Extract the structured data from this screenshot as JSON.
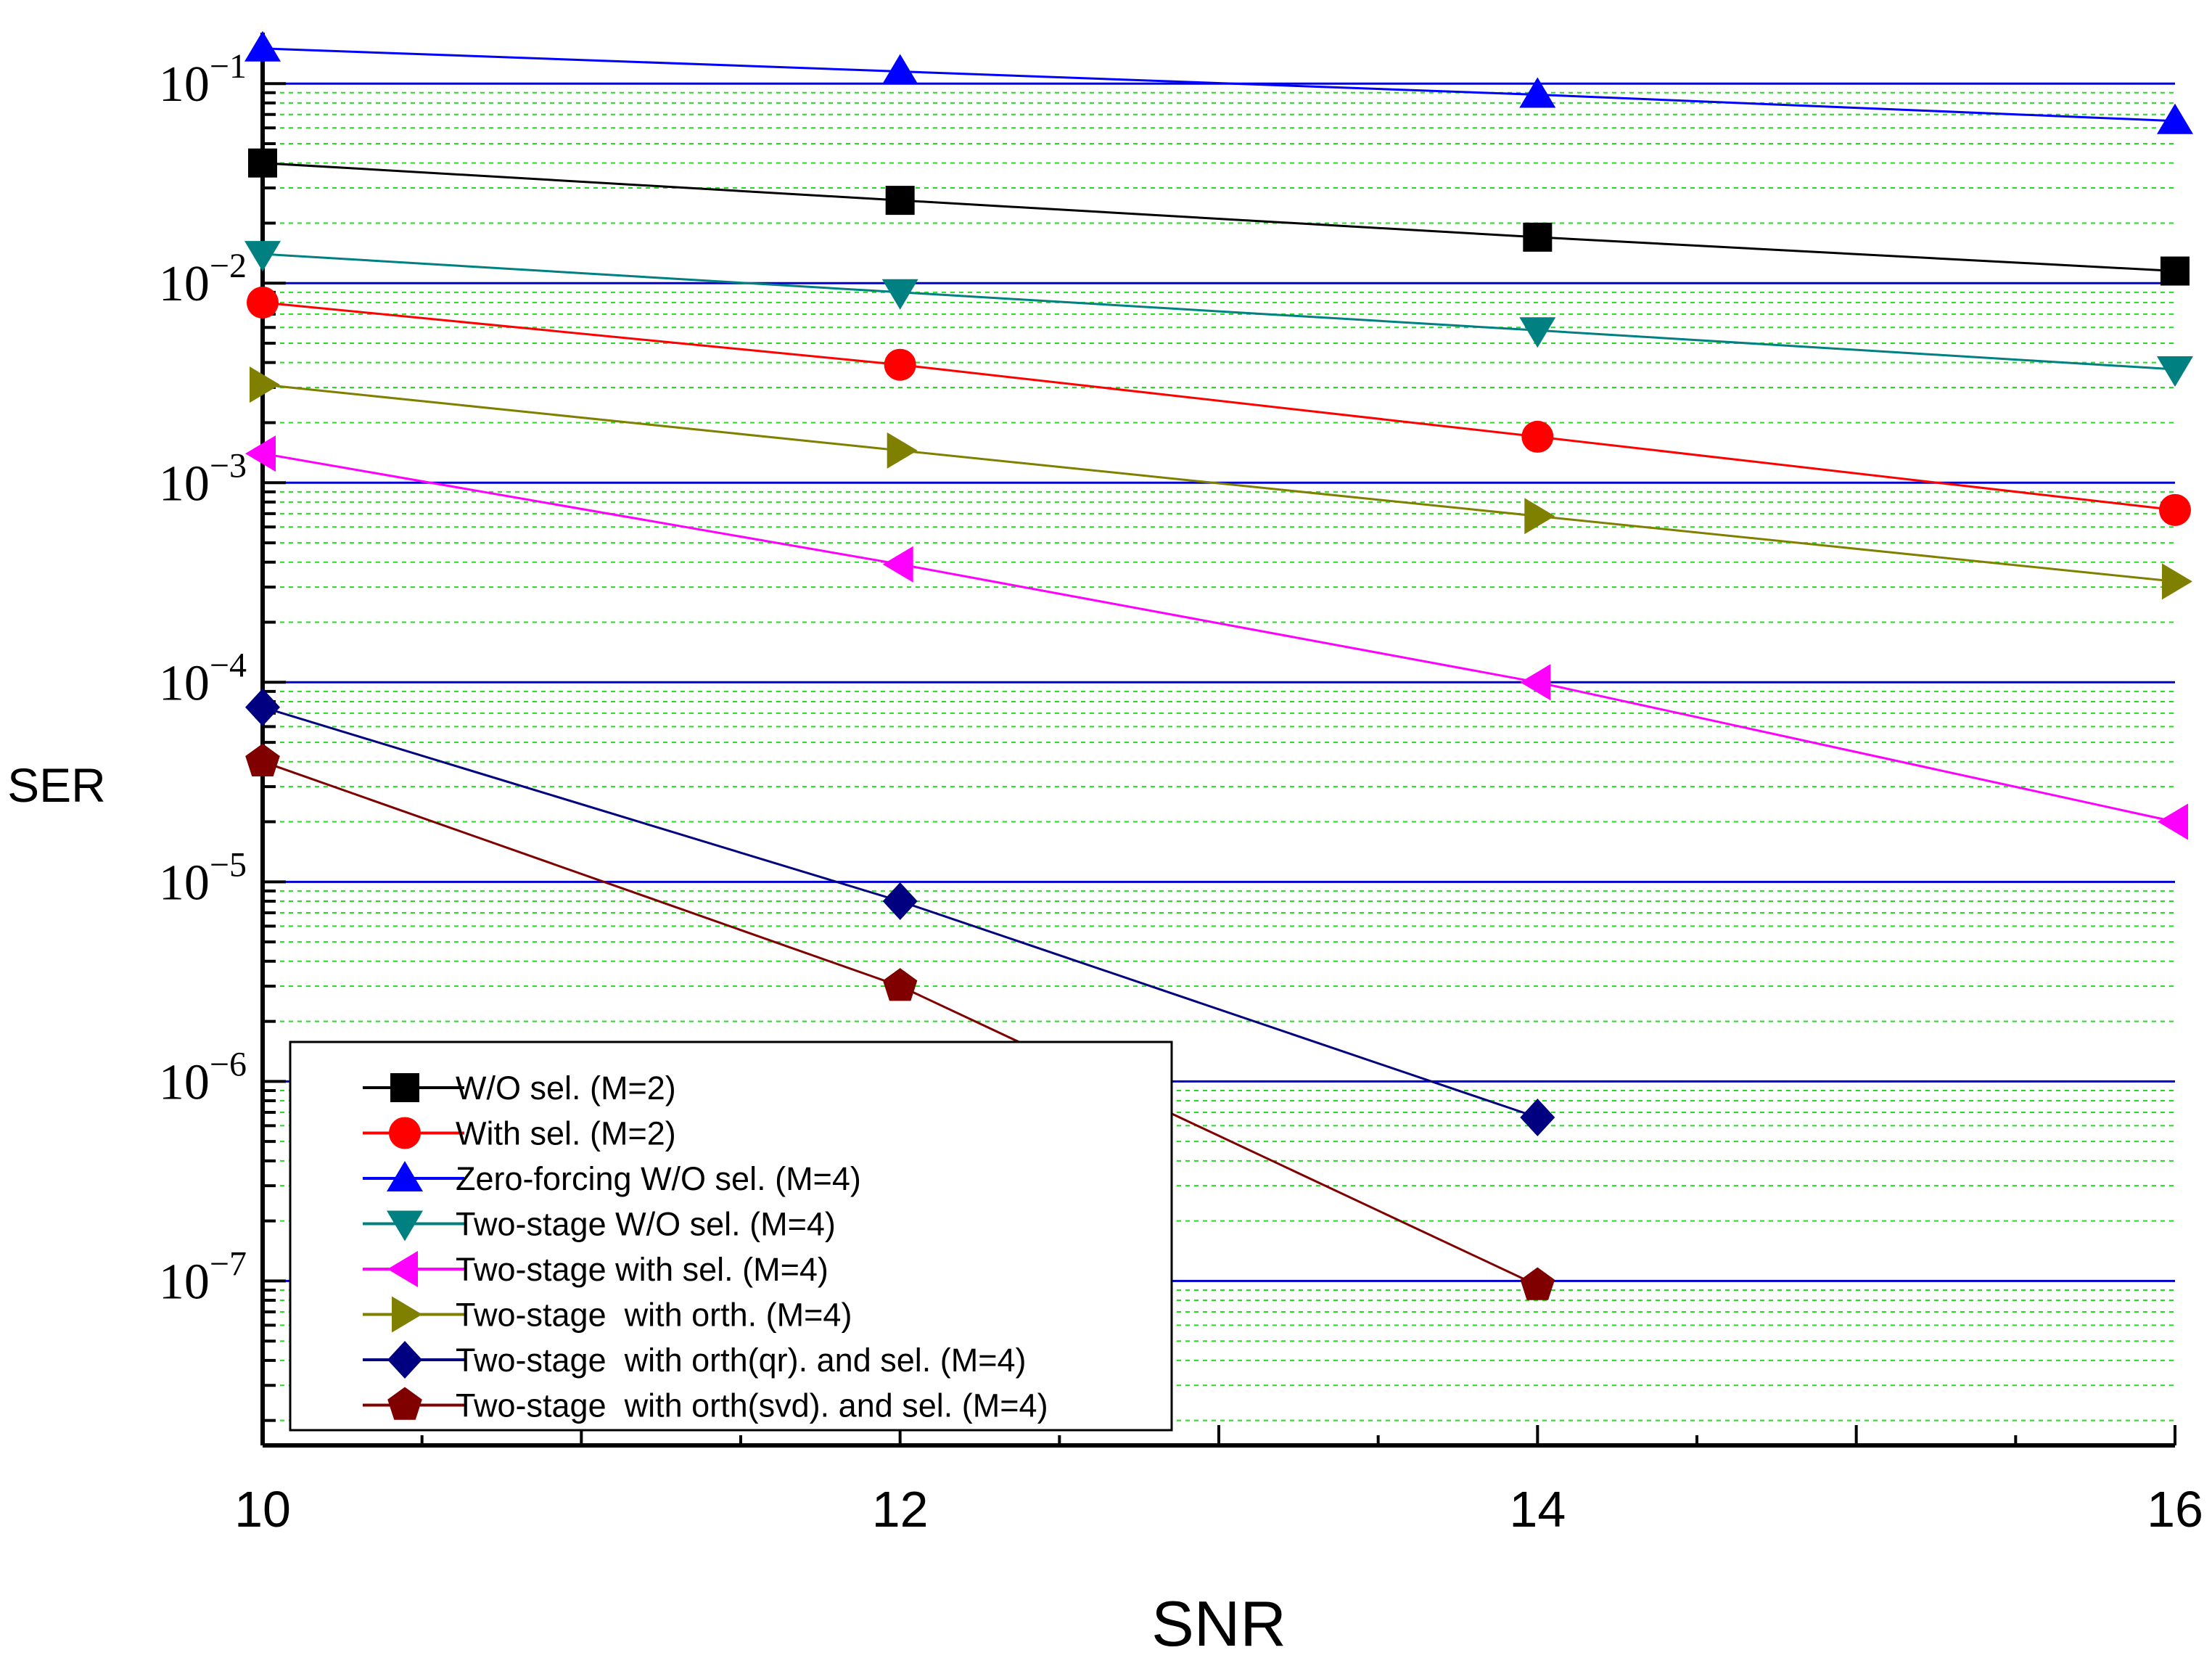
{
  "chart_data": {
    "type": "line",
    "title": "",
    "xlabel": "SNR",
    "ylabel": "SER",
    "xlim": [
      10,
      16
    ],
    "ylim": [
      1.5e-08,
      0.18
    ],
    "yscale": "log",
    "x_ticks": [
      10,
      12,
      14,
      16
    ],
    "y_tick_exponents": [
      -1,
      -2,
      -3,
      -4,
      -5,
      -6,
      -7
    ],
    "grid": true,
    "legend_position": "bottom-left",
    "series": [
      {
        "name": "W/O sel. (M=2)",
        "color": "#000000",
        "marker": "square",
        "x": [
          10,
          12,
          14,
          16
        ],
        "y": [
          0.04,
          0.026,
          0.017,
          0.0115
        ]
      },
      {
        "name": "With sel. (M=2)",
        "color": "#ff0000",
        "marker": "circle",
        "x": [
          10,
          12,
          14,
          16
        ],
        "y": [
          0.008,
          0.0039,
          0.0017,
          0.00073
        ]
      },
      {
        "name": "Zero-forcing W/O sel. (M=4)",
        "color": "#0000ff",
        "marker": "triangle-up",
        "x": [
          10,
          12,
          14,
          16
        ],
        "y": [
          0.15,
          0.115,
          0.088,
          0.065
        ]
      },
      {
        "name": "Two-stage W/O sel. (M=4)",
        "color": "#008080",
        "marker": "triangle-down",
        "x": [
          10,
          12,
          14,
          16
        ],
        "y": [
          0.014,
          0.009,
          0.0058,
          0.0037
        ]
      },
      {
        "name": "Two-stage with sel. (M=4)",
        "color": "#ff00ff",
        "marker": "triangle-left",
        "x": [
          10,
          12,
          14,
          16
        ],
        "y": [
          0.0014,
          0.00039,
          0.0001,
          2e-05
        ]
      },
      {
        "name": "Two-stage  with orth. (M=4)",
        "color": "#808000",
        "marker": "triangle-right",
        "x": [
          10,
          12,
          14,
          16
        ],
        "y": [
          0.0031,
          0.00145,
          0.00068,
          0.00032
        ]
      },
      {
        "name": "Two-stage  with orth(qr). and sel. (M=4)",
        "color": "#000080",
        "marker": "diamond",
        "x": [
          10,
          12,
          14
        ],
        "y": [
          7.5e-05,
          8e-06,
          6.6e-07
        ]
      },
      {
        "name": "Two-stage  with orth(svd). and sel. (M=4)",
        "color": "#800000",
        "marker": "pentagon",
        "x": [
          10,
          12,
          14
        ],
        "y": [
          4e-05,
          3e-06,
          9.5e-08
        ]
      }
    ]
  }
}
